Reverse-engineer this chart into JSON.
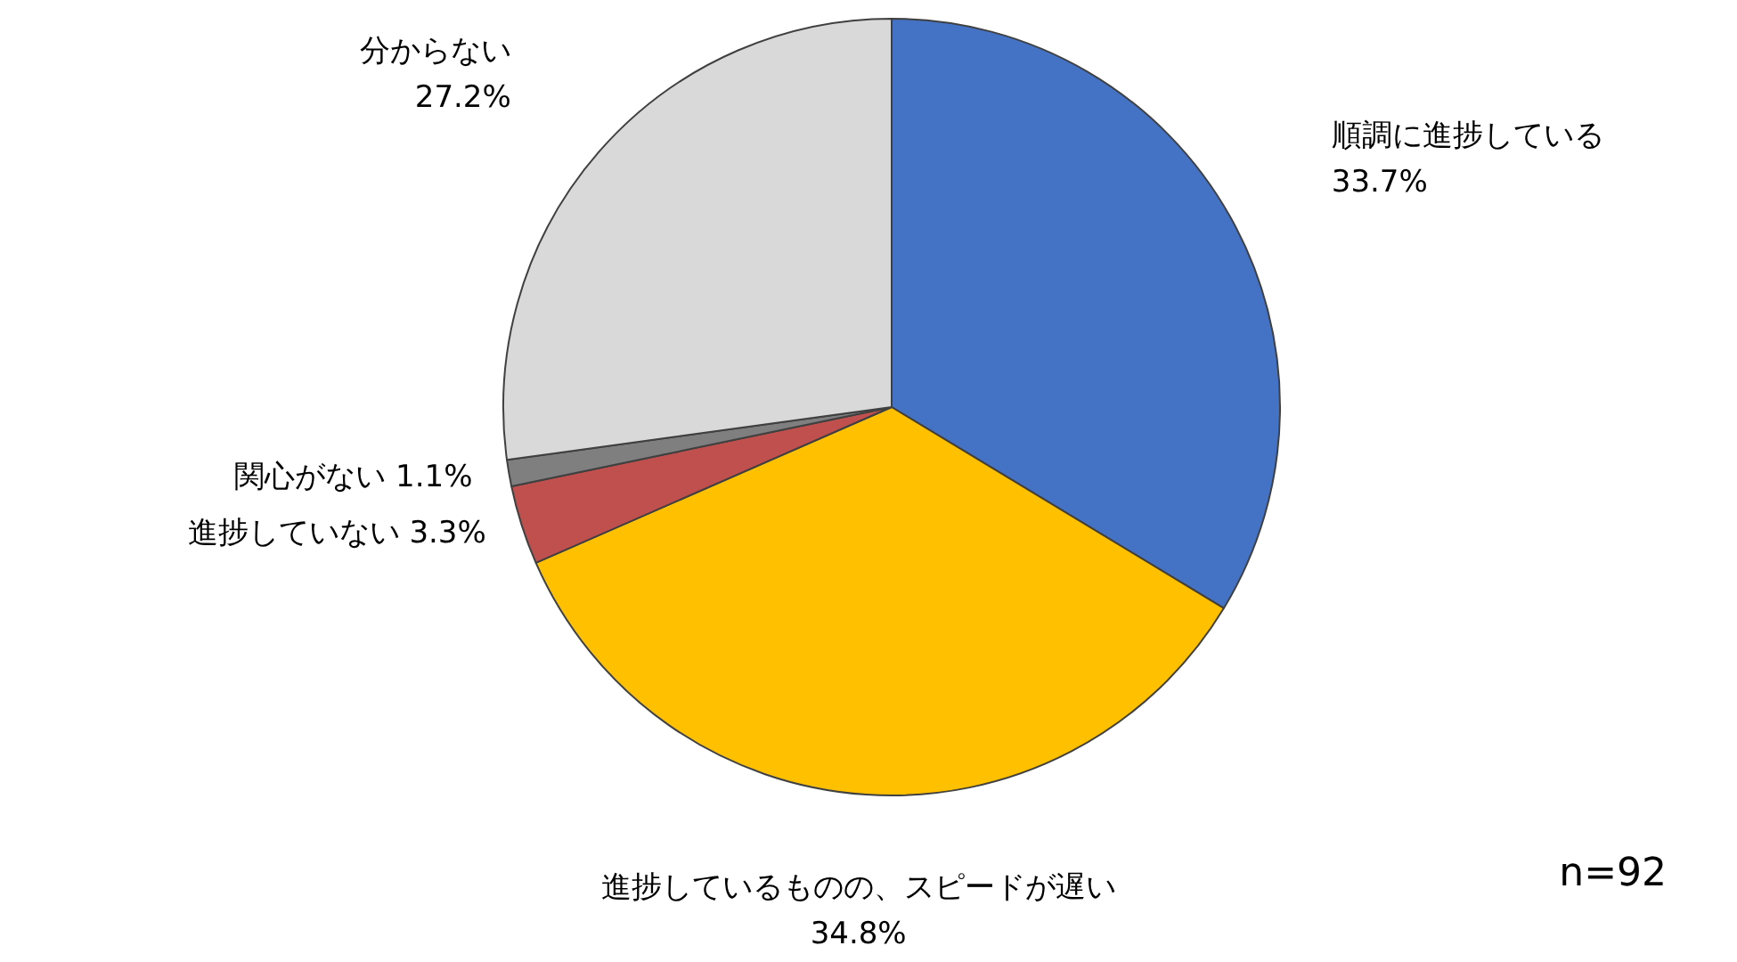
{
  "chart_data": {
    "type": "pie",
    "categories": [
      "順調に進捗している",
      "進捗しているものの、スピードが遅い",
      "進捗していない",
      "関心がない",
      "分からない"
    ],
    "values": [
      33.7,
      34.8,
      3.3,
      1.1,
      27.2
    ],
    "value_labels": [
      "33.7%",
      "34.8%",
      "3.3%",
      "1.1%",
      "27.2%"
    ],
    "colors": [
      "#4472c4",
      "#ffc000",
      "#c0504d",
      "#7f7f7f",
      "#d9d9d9"
    ],
    "annotations": [
      "n=92"
    ]
  }
}
